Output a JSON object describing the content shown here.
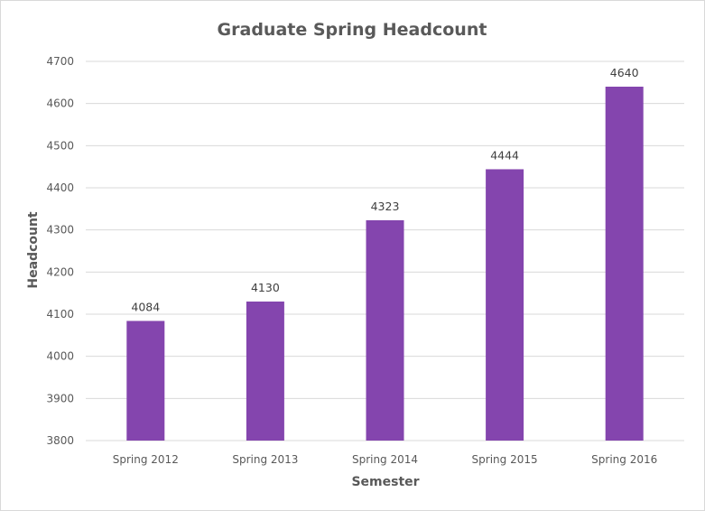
{
  "chart_data": {
    "type": "bar",
    "title": "Graduate Spring Headcount",
    "xlabel": "Semester",
    "ylabel": "Headcount",
    "categories": [
      "Spring 2012",
      "Spring 2013",
      "Spring 2014",
      "Spring 2015",
      "Spring 2016"
    ],
    "values": [
      4084,
      4130,
      4323,
      4444,
      4640
    ],
    "ylim": [
      3800,
      4700
    ],
    "yticks": [
      3800,
      3900,
      4000,
      4100,
      4200,
      4300,
      4400,
      4500,
      4600,
      4700
    ],
    "grid": true,
    "legend": "none",
    "bar_color": "#8445ae"
  }
}
